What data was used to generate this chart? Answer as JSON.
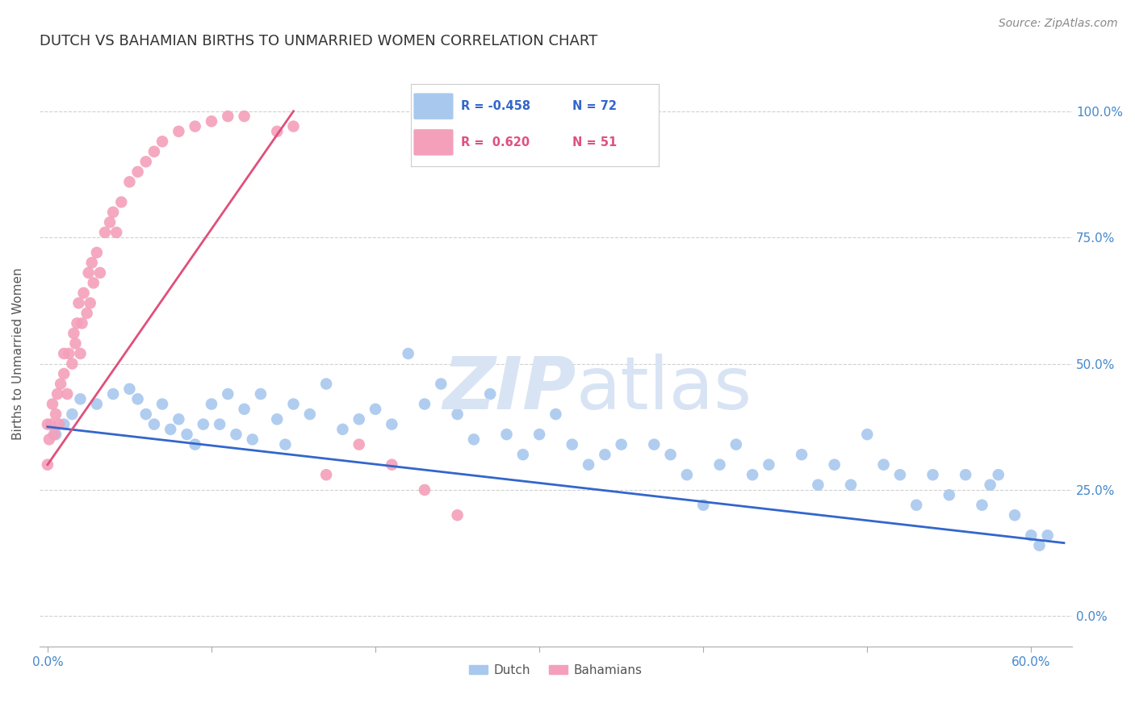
{
  "title": "DUTCH VS BAHAMIAN BIRTHS TO UNMARRIED WOMEN CORRELATION CHART",
  "source": "Source: ZipAtlas.com",
  "ylabel": "Births to Unmarried Women",
  "legend_r_dutch": "-0.458",
  "legend_n_dutch": "72",
  "legend_r_bahamian": "0.620",
  "legend_n_bahamian": "51",
  "dutch_color": "#A8C8EE",
  "bahamian_color": "#F4A0BA",
  "dutch_line_color": "#3366CC",
  "bahamian_line_color": "#E0507A",
  "background_color": "#FFFFFF",
  "watermark_color": "#D8E4F4",
  "title_fontsize": 13,
  "axis_label_fontsize": 11,
  "tick_fontsize": 11,
  "dutch_x": [
    0.005,
    0.01,
    0.015,
    0.02,
    0.03,
    0.04,
    0.05,
    0.055,
    0.06,
    0.065,
    0.07,
    0.075,
    0.08,
    0.085,
    0.09,
    0.095,
    0.1,
    0.105,
    0.11,
    0.115,
    0.12,
    0.125,
    0.13,
    0.14,
    0.145,
    0.15,
    0.16,
    0.17,
    0.18,
    0.19,
    0.2,
    0.21,
    0.22,
    0.23,
    0.24,
    0.25,
    0.26,
    0.27,
    0.28,
    0.29,
    0.3,
    0.31,
    0.32,
    0.33,
    0.34,
    0.35,
    0.37,
    0.38,
    0.39,
    0.4,
    0.41,
    0.42,
    0.43,
    0.44,
    0.46,
    0.47,
    0.48,
    0.49,
    0.5,
    0.51,
    0.52,
    0.53,
    0.54,
    0.55,
    0.56,
    0.57,
    0.575,
    0.58,
    0.59,
    0.6,
    0.605,
    0.61
  ],
  "dutch_y": [
    0.36,
    0.38,
    0.4,
    0.43,
    0.42,
    0.44,
    0.45,
    0.43,
    0.4,
    0.38,
    0.42,
    0.37,
    0.39,
    0.36,
    0.34,
    0.38,
    0.42,
    0.38,
    0.44,
    0.36,
    0.41,
    0.35,
    0.44,
    0.39,
    0.34,
    0.42,
    0.4,
    0.46,
    0.37,
    0.39,
    0.41,
    0.38,
    0.52,
    0.42,
    0.46,
    0.4,
    0.35,
    0.44,
    0.36,
    0.32,
    0.36,
    0.4,
    0.34,
    0.3,
    0.32,
    0.34,
    0.34,
    0.32,
    0.28,
    0.22,
    0.3,
    0.34,
    0.28,
    0.3,
    0.32,
    0.26,
    0.3,
    0.26,
    0.36,
    0.3,
    0.28,
    0.22,
    0.28,
    0.24,
    0.28,
    0.22,
    0.26,
    0.28,
    0.2,
    0.16,
    0.14,
    0.16
  ],
  "bahamian_x": [
    0.0,
    0.0,
    0.001,
    0.002,
    0.003,
    0.004,
    0.005,
    0.006,
    0.007,
    0.008,
    0.01,
    0.01,
    0.012,
    0.013,
    0.015,
    0.016,
    0.017,
    0.018,
    0.019,
    0.02,
    0.021,
    0.022,
    0.024,
    0.025,
    0.026,
    0.027,
    0.028,
    0.03,
    0.032,
    0.035,
    0.038,
    0.04,
    0.042,
    0.045,
    0.05,
    0.055,
    0.06,
    0.065,
    0.07,
    0.08,
    0.09,
    0.1,
    0.11,
    0.12,
    0.14,
    0.15,
    0.17,
    0.19,
    0.21,
    0.23,
    0.25
  ],
  "bahamian_y": [
    0.3,
    0.38,
    0.35,
    0.38,
    0.42,
    0.36,
    0.4,
    0.44,
    0.38,
    0.46,
    0.48,
    0.52,
    0.44,
    0.52,
    0.5,
    0.56,
    0.54,
    0.58,
    0.62,
    0.52,
    0.58,
    0.64,
    0.6,
    0.68,
    0.62,
    0.7,
    0.66,
    0.72,
    0.68,
    0.76,
    0.78,
    0.8,
    0.76,
    0.82,
    0.86,
    0.88,
    0.9,
    0.92,
    0.94,
    0.96,
    0.97,
    0.98,
    0.99,
    0.99,
    0.96,
    0.97,
    0.28,
    0.34,
    0.3,
    0.25,
    0.2
  ],
  "dutch_line_x": [
    0.0,
    0.62
  ],
  "dutch_line_y": [
    0.375,
    0.145
  ],
  "bahamian_line_x": [
    0.0,
    0.15
  ],
  "bahamian_line_y": [
    0.3,
    1.0
  ],
  "xlim": [
    -0.005,
    0.625
  ],
  "ylim": [
    -0.06,
    1.1
  ],
  "x_tick_vals": [
    0.0,
    0.1,
    0.2,
    0.3,
    0.4,
    0.5,
    0.6
  ],
  "x_tick_vis": [
    true,
    false,
    false,
    false,
    false,
    false,
    false
  ],
  "y_tick_vals": [
    0.0,
    0.25,
    0.5,
    0.75,
    1.0
  ],
  "y_tick_labels": [
    "0.0%",
    "25.0%",
    "50.0%",
    "75.0%",
    "100.0%"
  ]
}
